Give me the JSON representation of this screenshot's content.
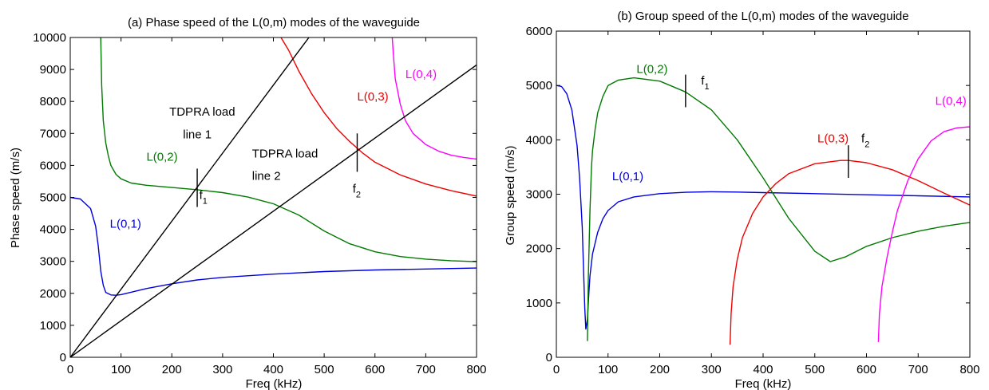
{
  "chart_data": [
    {
      "type": "line",
      "title": "(a) Phase speed of the L(0,m) modes of the waveguide",
      "xlabel": "Freq (kHz)",
      "ylabel": "Phase speed (m/s)",
      "xlim": [
        0,
        800
      ],
      "ylim": [
        0,
        10000
      ],
      "xticks": [
        0,
        100,
        200,
        300,
        400,
        500,
        600,
        700,
        800
      ],
      "yticks": [
        0,
        1000,
        2000,
        3000,
        4000,
        5000,
        6000,
        7000,
        8000,
        9000,
        10000
      ],
      "grid": false,
      "series": [
        {
          "name": "L(0,1)",
          "color": "#0000dd",
          "x": [
            0,
            20,
            40,
            50,
            55,
            60,
            65,
            70,
            80,
            90,
            100,
            150,
            200,
            250,
            300,
            400,
            500,
            600,
            700,
            800
          ],
          "y": [
            5000,
            4950,
            4650,
            4100,
            3500,
            2700,
            2250,
            2030,
            1950,
            1940,
            1960,
            2150,
            2300,
            2420,
            2500,
            2600,
            2680,
            2730,
            2760,
            2790
          ]
        },
        {
          "name": "L(0,2)",
          "color": "#007a00",
          "x": [
            60,
            62,
            65,
            70,
            75,
            80,
            90,
            100,
            120,
            150,
            200,
            250,
            300,
            350,
            400,
            450,
            500,
            550,
            600,
            650,
            700,
            750,
            800
          ],
          "y": [
            10000,
            8500,
            7400,
            6700,
            6300,
            6000,
            5720,
            5580,
            5450,
            5380,
            5310,
            5240,
            5150,
            5010,
            4800,
            4450,
            3950,
            3550,
            3300,
            3150,
            3070,
            3020,
            2990
          ]
        },
        {
          "name": "L(0,3)",
          "color": "#ee0000",
          "x": [
            415,
            430,
            450,
            475,
            500,
            525,
            550,
            575,
            600,
            650,
            700,
            750,
            800
          ],
          "y": [
            10000,
            9600,
            8950,
            8250,
            7650,
            7150,
            6750,
            6400,
            6100,
            5700,
            5420,
            5210,
            5040
          ]
        },
        {
          "name": "L(0,4)",
          "color": "#ff00ff",
          "x": [
            634,
            636,
            640,
            650,
            660,
            675,
            700,
            725,
            750,
            775,
            800
          ],
          "y": [
            10000,
            9500,
            8700,
            7900,
            7400,
            7000,
            6650,
            6450,
            6320,
            6250,
            6200
          ]
        },
        {
          "name": "",
          "color": "#000000",
          "x": [
            0,
            470
          ],
          "y": [
            0,
            10000
          ]
        },
        {
          "name": "",
          "color": "#000000",
          "x": [
            0,
            800
          ],
          "y": [
            0,
            9140
          ]
        }
      ],
      "markers": [
        {
          "x": 250,
          "y1": 4700,
          "y2": 5900,
          "label_main": "f",
          "label_sub": "1",
          "label_x": 254,
          "label_y": 4950
        },
        {
          "x": 565,
          "y1": 5800,
          "y2": 7000,
          "label_main": "f",
          "label_sub": "2",
          "label_x": 556,
          "label_y": 5150
        }
      ],
      "annotations": [
        {
          "text": "L(0,1)",
          "color": "#0000dd",
          "x": 78,
          "y": 4050
        },
        {
          "text": "L(0,2)",
          "color": "#007a00",
          "x": 150,
          "y": 6150
        },
        {
          "text": "L(0,3)",
          "color": "#ee0000",
          "x": 565,
          "y": 8030
        },
        {
          "text": "L(0,4)",
          "color": "#ff00ff",
          "x": 660,
          "y": 8730
        },
        {
          "text": "TDPRA load",
          "color": "#000000",
          "x": 195,
          "y": 7550
        },
        {
          "text": "line 1",
          "color": "#000000",
          "x": 222,
          "y": 6850
        },
        {
          "text": "TDPRA load",
          "color": "#000000",
          "x": 358,
          "y": 6250
        },
        {
          "text": "line 2",
          "color": "#000000",
          "x": 358,
          "y": 5550
        }
      ]
    },
    {
      "type": "line",
      "title": "(b) Group speed of the L(0,m) modes of the waveguide",
      "xlabel": "Freq (kHz)",
      "ylabel": "Group speed (m/s)",
      "xlim": [
        0,
        800
      ],
      "ylim": [
        0,
        6000
      ],
      "xticks": [
        0,
        100,
        200,
        300,
        400,
        500,
        600,
        700,
        800
      ],
      "yticks": [
        0,
        1000,
        2000,
        3000,
        4000,
        5000,
        6000
      ],
      "grid": false,
      "series": [
        {
          "name": "L(0,1)",
          "color": "#0000dd",
          "x": [
            0,
            10,
            20,
            30,
            40,
            45,
            50,
            53,
            55,
            57,
            60,
            63,
            65,
            70,
            80,
            90,
            100,
            120,
            150,
            200,
            250,
            300,
            350,
            400,
            500,
            600,
            700,
            800
          ],
          "y": [
            5000,
            4980,
            4850,
            4550,
            3900,
            3300,
            2400,
            1500,
            900,
            520,
            700,
            1200,
            1500,
            1900,
            2300,
            2550,
            2700,
            2860,
            2950,
            3010,
            3035,
            3045,
            3040,
            3030,
            3010,
            2990,
            2970,
            2950
          ]
        },
        {
          "name": "L(0,2)",
          "color": "#007a00",
          "x": [
            60,
            62,
            65,
            68,
            70,
            75,
            80,
            90,
            100,
            120,
            150,
            200,
            250,
            300,
            350,
            400,
            450,
            500,
            530,
            560,
            600,
            650,
            700,
            750,
            800
          ],
          "y": [
            300,
            1500,
            2700,
            3500,
            3800,
            4200,
            4500,
            4800,
            5000,
            5100,
            5140,
            5080,
            4880,
            4550,
            4000,
            3300,
            2550,
            1950,
            1760,
            1850,
            2040,
            2200,
            2320,
            2410,
            2480
          ]
        },
        {
          "name": "L(0,3)",
          "color": "#ee0000",
          "x": [
            336,
            338,
            342,
            350,
            360,
            380,
            400,
            425,
            450,
            500,
            550,
            565,
            600,
            650,
            700,
            750,
            800
          ],
          "y": [
            230,
            800,
            1300,
            1800,
            2200,
            2650,
            2950,
            3200,
            3380,
            3560,
            3620,
            3620,
            3580,
            3450,
            3250,
            3020,
            2800
          ]
        },
        {
          "name": "L(0,4)",
          "color": "#ff00ff",
          "x": [
            623,
            625,
            630,
            640,
            650,
            660,
            680,
            700,
            725,
            750,
            775,
            800
          ],
          "y": [
            280,
            800,
            1300,
            1850,
            2300,
            2700,
            3250,
            3650,
            3980,
            4150,
            4220,
            4240
          ]
        }
      ],
      "markers": [
        {
          "x": 250,
          "y1": 4600,
          "y2": 5200,
          "label_main": "f",
          "label_sub": "1",
          "label_x": 280,
          "label_y": 5020
        },
        {
          "x": 565,
          "y1": 3300,
          "y2": 3900,
          "label_main": "f",
          "label_sub": "2",
          "label_x": 590,
          "label_y": 3950
        }
      ],
      "annotations": [
        {
          "text": "L(0,1)",
          "color": "#0000dd",
          "x": 108,
          "y": 3260
        },
        {
          "text": "L(0,2)",
          "color": "#007a00",
          "x": 155,
          "y": 5230
        },
        {
          "text": "L(0,3)",
          "color": "#ee0000",
          "x": 505,
          "y": 3950
        },
        {
          "text": "L(0,4)",
          "color": "#ff00ff",
          "x": 733,
          "y": 4640
        }
      ]
    }
  ]
}
